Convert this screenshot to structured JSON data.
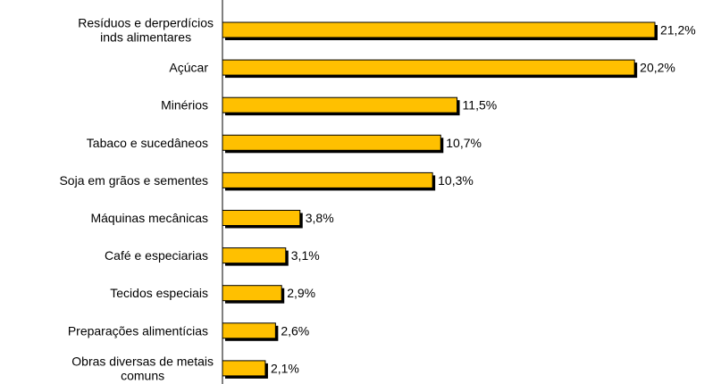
{
  "chart_data": {
    "type": "bar",
    "orientation": "horizontal",
    "categories": [
      [
        "Resíduos e derperdícios",
        "inds alimentares"
      ],
      [
        "Açúcar"
      ],
      [
        "Minérios"
      ],
      [
        "Tabaco e sucedâneos"
      ],
      [
        "Soja em grãos e sementes"
      ],
      [
        "Máquinas mecânicas"
      ],
      [
        "Café e especiarias"
      ],
      [
        "Tecidos especiais"
      ],
      [
        "Preparações alimentícias"
      ],
      [
        "Obras diversas de metais",
        "comuns"
      ]
    ],
    "values": [
      21.2,
      20.2,
      11.5,
      10.7,
      10.3,
      3.8,
      3.1,
      2.9,
      2.6,
      2.1
    ],
    "value_labels": [
      "21,2%",
      "20,2%",
      "11,5%",
      "10,7%",
      "10,3%",
      "3,8%",
      "3,1%",
      "2,9%",
      "2,6%",
      "2,1%"
    ],
    "xlim": [
      0,
      24
    ],
    "grid": false,
    "legend": "none",
    "colors": {
      "bar_fill": "#FFC000",
      "bar_stroke": "#000000",
      "bar_shadow": "#000000",
      "axis": "#000000"
    }
  }
}
